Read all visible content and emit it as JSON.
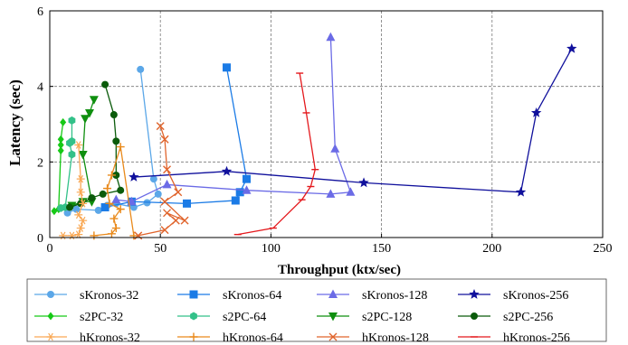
{
  "chart_data": {
    "type": "line",
    "title": "",
    "xlabel": "Throughput (ktx/sec)",
    "ylabel": "Latency (sec)",
    "xlim": [
      0,
      250
    ],
    "ylim": [
      0,
      6
    ],
    "xticks": [
      "0",
      "50",
      "100",
      "150",
      "200",
      "250"
    ],
    "yticks": [
      "0",
      "2",
      "4",
      "6"
    ],
    "grid": true,
    "grid_style": "dashed",
    "legend_position": "bottom",
    "legend_columns": 4,
    "series": [
      {
        "name": "sKronos-32",
        "color": "#5ba7e8",
        "marker": "circle",
        "x": [
          8,
          12,
          22,
          26,
          30,
          38,
          44,
          49,
          47,
          41
        ],
        "y": [
          0.65,
          0.75,
          0.72,
          0.85,
          0.9,
          0.8,
          0.92,
          1.15,
          1.55,
          4.45
        ]
      },
      {
        "name": "sKronos-64",
        "color": "#1b7be6",
        "marker": "square",
        "x": [
          25,
          37,
          62,
          84,
          86,
          89,
          80
        ],
        "y": [
          0.8,
          0.95,
          0.9,
          0.98,
          1.2,
          1.55,
          4.5
        ]
      },
      {
        "name": "sKronos-128",
        "color": "#6b6be6",
        "marker": "triangle",
        "x": [
          30,
          37,
          53,
          89,
          127,
          136,
          129,
          127
        ],
        "y": [
          1.0,
          0.95,
          1.4,
          1.25,
          1.15,
          1.2,
          2.35,
          5.3
        ]
      },
      {
        "name": "sKronos-256",
        "color": "#10109c",
        "marker": "star",
        "x": [
          38,
          80,
          142,
          213,
          220,
          236
        ],
        "y": [
          1.6,
          1.75,
          1.45,
          1.2,
          3.3,
          5.0
        ]
      },
      {
        "name": "s2PC-32",
        "color": "#16c916",
        "marker": "diamond",
        "x": [
          2,
          4,
          5,
          5,
          5,
          6
        ],
        "y": [
          0.7,
          0.75,
          2.3,
          2.45,
          2.6,
          3.05
        ]
      },
      {
        "name": "s2PC-64",
        "color": "#33c189",
        "marker": "hexagon",
        "x": [
          5,
          7,
          10,
          9,
          10,
          10
        ],
        "y": [
          0.78,
          0.8,
          2.2,
          2.5,
          2.55,
          3.1
        ]
      },
      {
        "name": "s2PC-128",
        "color": "#0f8f0f",
        "marker": "triangle-down",
        "x": [
          10,
          15,
          19,
          15,
          16,
          18,
          20
        ],
        "y": [
          0.85,
          0.95,
          0.95,
          2.2,
          3.15,
          3.3,
          3.65
        ]
      },
      {
        "name": "s2PC-256",
        "color": "#0b5b0b",
        "marker": "circle",
        "x": [
          9,
          14,
          19,
          24,
          32,
          30,
          30,
          29,
          25
        ],
        "y": [
          0.8,
          0.9,
          1.05,
          1.15,
          1.25,
          1.65,
          2.55,
          3.25,
          4.05
        ]
      },
      {
        "name": "hKronos-32",
        "color": "#f9a854",
        "marker": "asterisk",
        "x": [
          6,
          10,
          13,
          14,
          15,
          13,
          15,
          14,
          14,
          13
        ],
        "y": [
          0.05,
          0.05,
          0.08,
          0.25,
          0.45,
          0.6,
          0.9,
          1.2,
          1.55,
          2.45
        ],
        "note": "loose scatter cluster near the y-axis"
      },
      {
        "name": "hKronos-64",
        "color": "#e98a1c",
        "marker": "plus",
        "x": [
          20,
          28,
          30,
          29,
          32,
          27,
          26,
          28,
          32,
          38
        ],
        "y": [
          0.05,
          0.1,
          0.25,
          0.5,
          0.75,
          0.9,
          1.3,
          1.65,
          2.4,
          0.05
        ]
      },
      {
        "name": "hKronos-128",
        "color": "#e0642c",
        "marker": "x",
        "x": [
          40,
          52,
          57,
          53,
          61,
          52,
          58,
          53,
          52,
          50
        ],
        "y": [
          0.05,
          0.2,
          0.45,
          0.65,
          0.45,
          0.95,
          1.2,
          1.8,
          2.6,
          2.95
        ]
      },
      {
        "name": "hKronos-256",
        "color": "#e4181c",
        "marker": "tick",
        "x": [
          85,
          101,
          114,
          118,
          120,
          116,
          113
        ],
        "y": [
          0.08,
          0.25,
          1.0,
          1.35,
          1.8,
          3.3,
          4.35
        ]
      }
    ]
  }
}
